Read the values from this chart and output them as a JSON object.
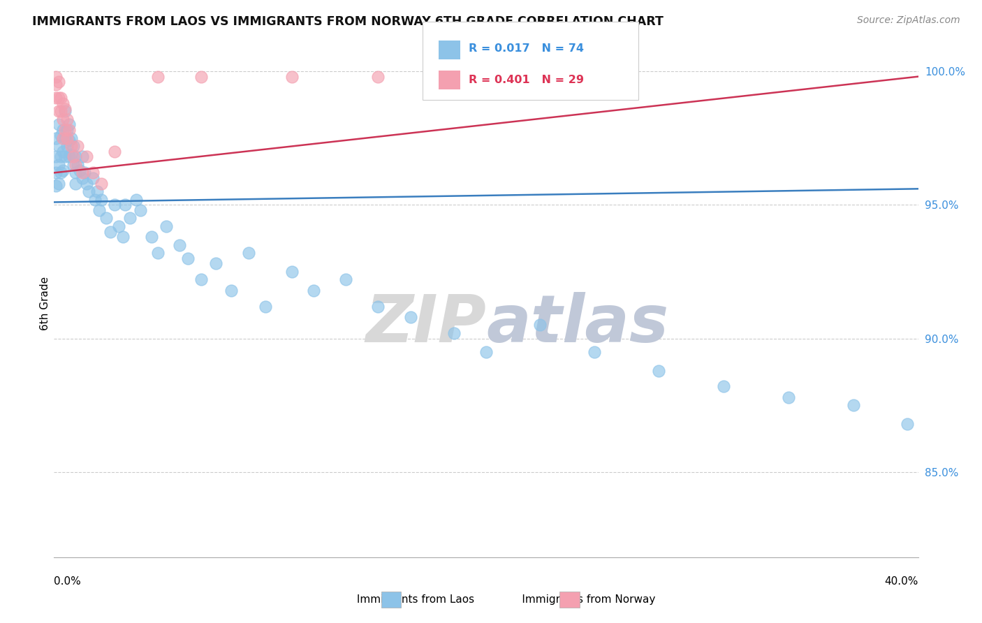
{
  "title": "IMMIGRANTS FROM LAOS VS IMMIGRANTS FROM NORWAY 6TH GRADE CORRELATION CHART",
  "source": "Source: ZipAtlas.com",
  "ylabel": "6th Grade",
  "xlim": [
    0.0,
    0.4
  ],
  "ylim": [
    0.818,
    1.008
  ],
  "yticks": [
    0.85,
    0.9,
    0.95,
    1.0
  ],
  "ytick_labels": [
    "85.0%",
    "90.0%",
    "95.0%",
    "100.0%"
  ],
  "legend_r_laos": "R = 0.017",
  "legend_n_laos": "N = 74",
  "legend_r_norway": "R = 0.401",
  "legend_n_norway": "N = 29",
  "color_laos": "#8dc3e8",
  "color_norway": "#f4a0b0",
  "color_laos_line": "#3a7ebf",
  "color_norway_line": "#cc3355",
  "color_laos_legend_text": "#3a8fdd",
  "color_norway_legend_text": "#dd3355",
  "laos_x": [
    0.001,
    0.001,
    0.001,
    0.001,
    0.002,
    0.002,
    0.002,
    0.002,
    0.003,
    0.003,
    0.003,
    0.004,
    0.004,
    0.004,
    0.005,
    0.005,
    0.005,
    0.006,
    0.006,
    0.007,
    0.007,
    0.007,
    0.008,
    0.008,
    0.009,
    0.009,
    0.01,
    0.01,
    0.01,
    0.011,
    0.012,
    0.013,
    0.013,
    0.014,
    0.015,
    0.016,
    0.018,
    0.019,
    0.02,
    0.021,
    0.022,
    0.024,
    0.026,
    0.028,
    0.03,
    0.032,
    0.033,
    0.035,
    0.038,
    0.04,
    0.045,
    0.048,
    0.052,
    0.058,
    0.062,
    0.068,
    0.075,
    0.082,
    0.09,
    0.098,
    0.11,
    0.12,
    0.135,
    0.15,
    0.165,
    0.185,
    0.2,
    0.225,
    0.25,
    0.28,
    0.31,
    0.34,
    0.37,
    0.395
  ],
  "laos_y": [
    0.975,
    0.968,
    0.962,
    0.957,
    0.98,
    0.972,
    0.965,
    0.958,
    0.976,
    0.968,
    0.962,
    0.978,
    0.97,
    0.963,
    0.985,
    0.975,
    0.968,
    0.978,
    0.972,
    0.98,
    0.974,
    0.968,
    0.975,
    0.969,
    0.972,
    0.965,
    0.968,
    0.962,
    0.958,
    0.965,
    0.963,
    0.968,
    0.96,
    0.962,
    0.958,
    0.955,
    0.96,
    0.952,
    0.955,
    0.948,
    0.952,
    0.945,
    0.94,
    0.95,
    0.942,
    0.938,
    0.95,
    0.945,
    0.952,
    0.948,
    0.938,
    0.932,
    0.942,
    0.935,
    0.93,
    0.922,
    0.928,
    0.918,
    0.932,
    0.912,
    0.925,
    0.918,
    0.922,
    0.912,
    0.908,
    0.902,
    0.895,
    0.905,
    0.895,
    0.888,
    0.882,
    0.878,
    0.875,
    0.868
  ],
  "norway_x": [
    0.001,
    0.001,
    0.001,
    0.002,
    0.002,
    0.002,
    0.003,
    0.003,
    0.004,
    0.004,
    0.004,
    0.005,
    0.005,
    0.006,
    0.006,
    0.007,
    0.008,
    0.009,
    0.01,
    0.011,
    0.013,
    0.015,
    0.018,
    0.022,
    0.028,
    0.048,
    0.068,
    0.11,
    0.15
  ],
  "norway_y": [
    0.998,
    0.995,
    0.99,
    0.996,
    0.99,
    0.985,
    0.99,
    0.985,
    0.988,
    0.982,
    0.975,
    0.986,
    0.978,
    0.982,
    0.975,
    0.978,
    0.972,
    0.968,
    0.965,
    0.972,
    0.962,
    0.968,
    0.962,
    0.958,
    0.97,
    0.998,
    0.998,
    0.998,
    0.998
  ],
  "laos_trendline_x": [
    0.0,
    0.4
  ],
  "laos_trendline_y": [
    0.951,
    0.956
  ],
  "norway_trendline_x": [
    0.0,
    0.4
  ],
  "norway_trendline_y": [
    0.962,
    0.998
  ],
  "watermark_line1": "ZIP",
  "watermark_line2": "atlas",
  "background_color": "#ffffff",
  "grid_color": "#cccccc",
  "spine_color": "#aaaaaa"
}
